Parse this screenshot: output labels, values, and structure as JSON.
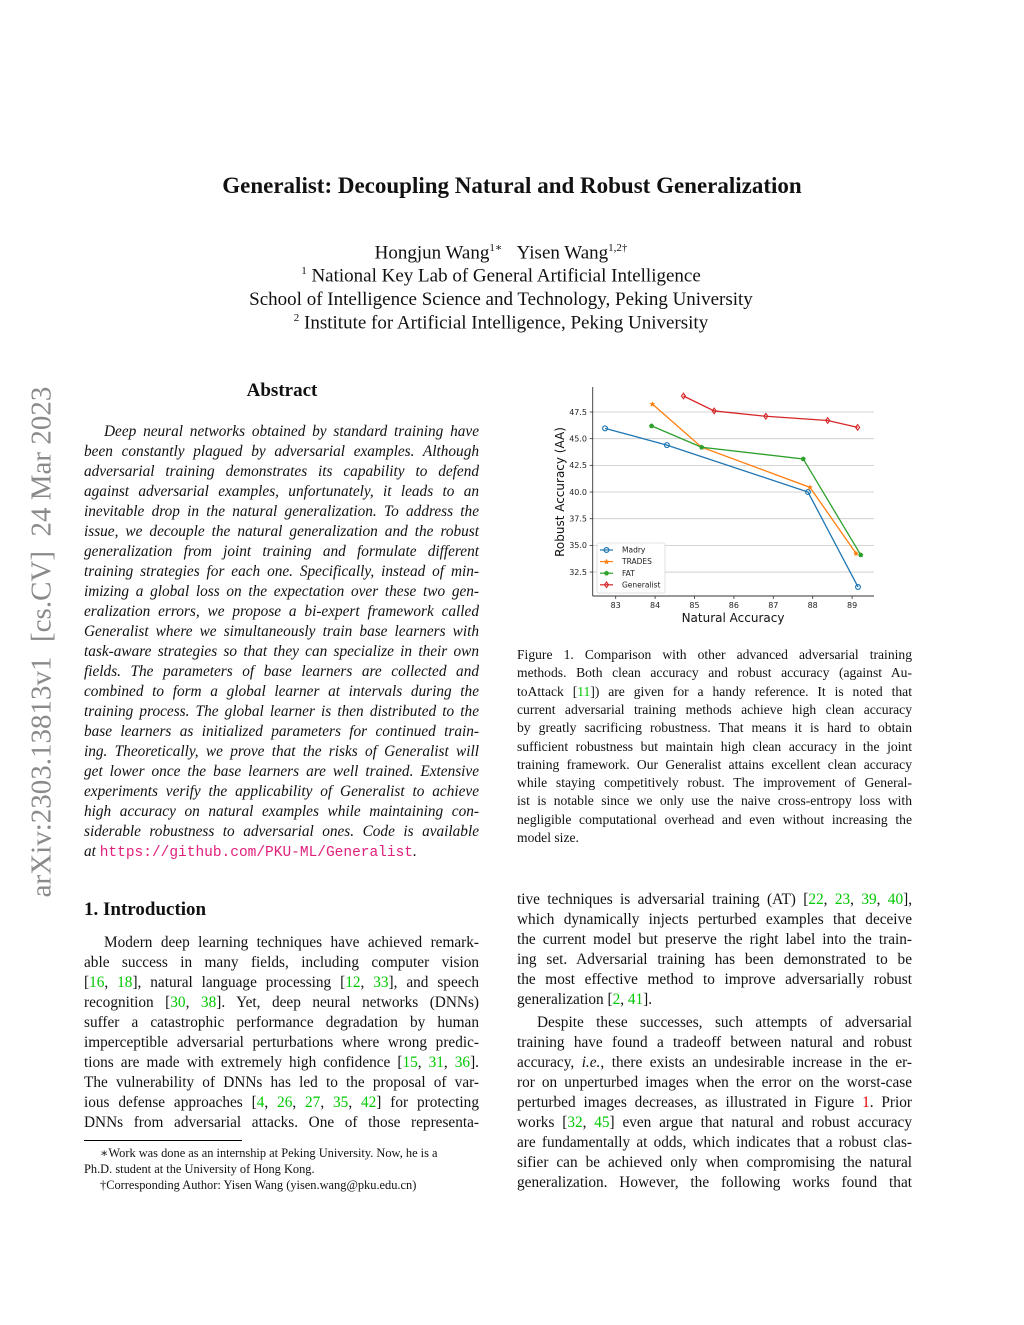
{
  "sidebar": {
    "arxiv_id": "arXiv:2303.13813v1  [cs.CV]  24 Mar 2023"
  },
  "header": {
    "title": "Generalist: Decoupling Natural and Robust Generalization",
    "author1": "Hongjun Wang",
    "author1_sup": "1∗",
    "author2": "Yisen Wang",
    "author2_sup": "1,2†",
    "aff1_sup": "1",
    "aff1": "National Key Lab of General Artificial Intelligence",
    "aff1b": "School of Intelligence Science and Technology, Peking University",
    "aff2_sup": "2",
    "aff2": "Institute for Artificial Intelligence, Peking University"
  },
  "abstract": {
    "heading": "Abstract",
    "lines": [
      "Deep neural networks obtained by standard training have",
      "been constantly plagued by adversarial examples. Although",
      "adversarial training demonstrates its capability to defend",
      "against adversarial examples, unfortunately, it leads to an",
      "inevitable drop in the natural generalization. To address the",
      "issue, we decouple the natural generalization and the robust",
      "generalization from joint training and formulate different",
      "training strategies for each one. Specifically, instead of min-",
      "imizing a global loss on the expectation over these two gen-",
      "eralization errors, we propose a bi-expert framework called",
      "Generalist where we simultaneously train base learners with",
      "task-aware strategies so that they can specialize in their own",
      "fields. The parameters of base learners are collected and",
      "combined to form a global learner at intervals during the",
      "training process. The global learner is then distributed to the",
      "base learners as initialized parameters for continued train-",
      "ing. Theoretically, we prove that the risks of Generalist will",
      "get lower once the base learners are well trained. Extensive",
      "experiments verify the applicability of Generalist to achieve",
      "high accuracy on natural examples while maintaining con-",
      "siderable robustness to adversarial ones. Code is available"
    ],
    "last_prefix": "at ",
    "code_link": "https://github.com/PKU-ML/Generalist",
    "last_suffix": "."
  },
  "intro": {
    "heading": "1. Introduction",
    "left_lines": [
      "Modern deep learning techniques have achieved remark-",
      "able success in many fields, including computer vision",
      "[16, 18], natural language processing [12, 33], and speech",
      "recognition [30, 38].  Yet, deep neural networks (DNNs)",
      "suffer a catastrophic performance degradation by human",
      "imperceptible adversarial perturbations where wrong predic-",
      "tions are made with extremely high confidence [15, 31, 36].",
      "The vulnerability of DNNs has led to the proposal of var-",
      "ious defense approaches [4, 26, 27, 35, 42] for protecting",
      "DNNs from adversarial attacks.  One of those representa-"
    ],
    "right_lines": [
      "tive techniques is adversarial training (AT) [22, 23, 39, 40],",
      "which dynamically injects perturbed examples that deceive",
      "the current model but preserve the right label into the train-",
      "ing set.  Adversarial training has been demonstrated to be",
      "the most effective method to improve adversarially robust",
      "generalization [2, 41].",
      "Despite these successes, such attempts of adversarial",
      "training have found a tradeoff between natural and robust",
      "accuracy, i.e., there exists an undesirable increase in the er-",
      "ror on unperturbed images when the error on the worst-case",
      "perturbed images decreases, as illustrated in Figure 1. Prior",
      "works [32, 45] even argue that natural and robust accuracy",
      "are fundamentally at odds, which indicates that a robust clas-",
      "sifier can be achieved only when compromising the natural",
      "generalization.  However, the following works found that"
    ]
  },
  "caption": {
    "lines": [
      "Figure 1.  Comparison with other advanced adversarial training",
      "methods.  Both clean accuracy and robust accuracy (against Au-",
      "toAttack [11]) are given for a handy reference.  It is noted that",
      "current adversarial training methods achieve high clean accuracy",
      "by greatly sacrificing robustness. That means it is hard to obtain",
      "sufficient robustness but maintain high clean accuracy in the joint",
      "training framework. Our Generalist attains excellent clean accuracy",
      "while staying competitively robust. The improvement of General-",
      "ist is notable since we only use the naive cross-entropy loss with",
      "negligible computational overhead and even without increasing the",
      "model size."
    ]
  },
  "footnotes": {
    "fn1a": "∗Work was done as an internship at Peking University.  Now, he is a",
    "fn1b": "Ph.D. student at the University of Hong Kong.",
    "fn2": "†Corresponding Author: Yisen Wang (yisen.wang@pku.edu.cn)"
  },
  "chart_data": {
    "type": "line",
    "title": "",
    "xlabel": "Natural Accuracy",
    "ylabel": "Robust Accuracy (AA)",
    "xlim": [
      82.5,
      89.4
    ],
    "ylim": [
      30.7,
      50.0
    ],
    "xticks": [
      83,
      84,
      85,
      86,
      87,
      88,
      89
    ],
    "yticks": [
      32.5,
      35.0,
      37.5,
      40.0,
      42.5,
      45.0,
      47.5
    ],
    "grid": "horizontal",
    "legend": "bottom-left",
    "series": [
      {
        "name": "Madry",
        "color": "#1f77b4",
        "marker": "circle",
        "x": [
          82.73,
          84.3,
          87.88,
          89.15
        ],
        "y": [
          45.97,
          44.4,
          40.0,
          31.1
        ]
      },
      {
        "name": "TRADES",
        "color": "#ff7f0e",
        "marker": "star",
        "x": [
          83.93,
          85.18,
          87.93,
          89.1
        ],
        "y": [
          48.25,
          44.2,
          40.44,
          34.25
        ]
      },
      {
        "name": "FAT",
        "color": "#2ca02c",
        "marker": "pentagon",
        "x": [
          83.91,
          85.18,
          87.76,
          89.22
        ],
        "y": [
          46.2,
          44.2,
          43.1,
          34.1
        ]
      },
      {
        "name": "Generalist",
        "color": "#d62728",
        "marker": "diamond",
        "x": [
          84.72,
          85.5,
          86.81,
          88.38,
          89.14
        ],
        "y": [
          49.0,
          47.6,
          47.1,
          46.7,
          46.06
        ]
      }
    ]
  }
}
